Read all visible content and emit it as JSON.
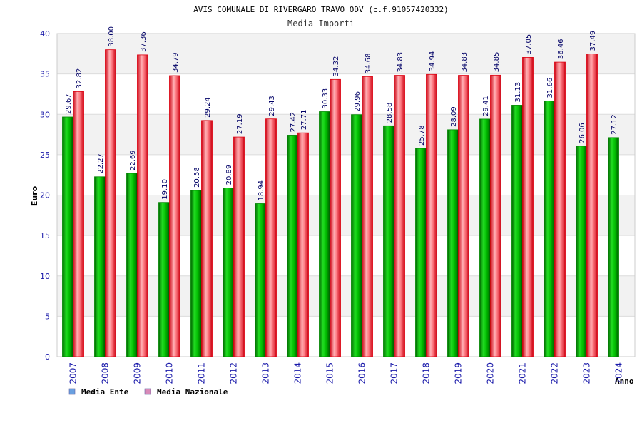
{
  "chart_data": {
    "type": "bar",
    "title": "AVIS COMUNALE DI RIVERGARO TRAVO ODV (c.f.91057420332)",
    "subtitle": "Media Importi",
    "xlabel": "Anno",
    "ylabel": "Euro",
    "ylim": [
      0,
      40
    ],
    "yticks": [
      "0",
      "5",
      "10",
      "15",
      "20",
      "25",
      "30",
      "35",
      "40"
    ],
    "categories": [
      "2007",
      "2008",
      "2009",
      "2010",
      "2011",
      "2012",
      "2013",
      "2014",
      "2015",
      "2016",
      "2017",
      "2018",
      "2019",
      "2020",
      "2021",
      "2022",
      "2023",
      "2024"
    ],
    "series": [
      {
        "name": "Media Ente",
        "color": "#00aa00",
        "legend_color": "#6aa0e0",
        "values": [
          29.67,
          22.27,
          22.69,
          19.1,
          20.58,
          20.89,
          18.94,
          27.42,
          30.33,
          29.96,
          28.58,
          25.78,
          28.09,
          29.41,
          31.13,
          31.66,
          26.06,
          27.12
        ],
        "labels": [
          "29.67",
          "22.27",
          "22.69",
          "19.10",
          "20.58",
          "20.89",
          "18.94",
          "27.42",
          "30.33",
          "29.96",
          "28.58",
          "25.78",
          "28.09",
          "29.41",
          "31.13",
          "31.66",
          "26.06",
          "27.12"
        ]
      },
      {
        "name": "Media Nazionale",
        "color": "#ee1c2c",
        "legend_color": "#d88ab8",
        "values": [
          32.82,
          38.0,
          37.36,
          34.79,
          29.24,
          27.19,
          29.43,
          27.71,
          34.32,
          34.68,
          34.83,
          34.94,
          34.83,
          34.85,
          37.05,
          36.46,
          37.49,
          null
        ],
        "labels": [
          "32.82",
          "38.00",
          "37.36",
          "34.79",
          "29.24",
          "27.19",
          "29.43",
          "27.71",
          "34.32",
          "34.68",
          "34.83",
          "34.94",
          "34.83",
          "34.85",
          "37.05",
          "36.46",
          "37.49",
          null
        ]
      }
    ],
    "legend_position": "bottom-left",
    "grid": true
  }
}
